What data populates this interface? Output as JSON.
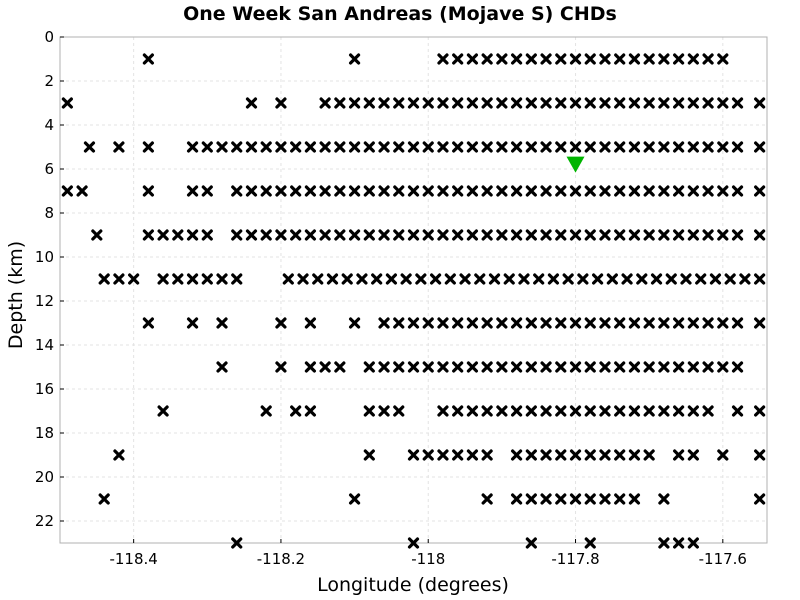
{
  "chart_data": {
    "type": "scatter",
    "title": "One Week San Andreas (Mojave S) CHDs",
    "xlabel": "Longitude (degrees)",
    "ylabel": "Depth (km)",
    "xlim": [
      -118.5,
      -117.54
    ],
    "ylim": [
      0,
      23
    ],
    "y_inverted": true,
    "grid": true,
    "xticks": [
      {
        "value": -118.4,
        "label": "-118.4"
      },
      {
        "value": -118.2,
        "label": "-118.2"
      },
      {
        "value": -118.0,
        "label": "-118"
      },
      {
        "value": -117.8,
        "label": "-117.8"
      },
      {
        "value": -117.6,
        "label": "-117.6"
      }
    ],
    "yticks": [
      {
        "value": 0,
        "label": "0"
      },
      {
        "value": 2,
        "label": "2"
      },
      {
        "value": 4,
        "label": "4"
      },
      {
        "value": 6,
        "label": "6"
      },
      {
        "value": 8,
        "label": "8"
      },
      {
        "value": 10,
        "label": "10"
      },
      {
        "value": 12,
        "label": "12"
      },
      {
        "value": 14,
        "label": "14"
      },
      {
        "value": 16,
        "label": "16"
      },
      {
        "value": 18,
        "label": "18"
      },
      {
        "value": 20,
        "label": "20"
      },
      {
        "value": 22,
        "label": "22"
      }
    ],
    "events": {
      "marker": "x",
      "color": "#000000",
      "rows": [
        {
          "depth": 1,
          "lon": [
            -118.38,
            -118.1,
            -117.98,
            -117.96,
            -117.94,
            -117.92,
            -117.9,
            -117.88,
            -117.86,
            -117.84,
            -117.82,
            -117.8,
            -117.78,
            -117.76,
            -117.74,
            -117.72,
            -117.7,
            -117.68,
            -117.66,
            -117.64,
            -117.62,
            -117.6
          ]
        },
        {
          "depth": 3,
          "lon": [
            -118.49,
            -118.24,
            -118.2,
            -118.14,
            -118.12,
            -118.1,
            -118.08,
            -118.06,
            -118.04,
            -118.02,
            -118.0,
            -117.98,
            -117.96,
            -117.94,
            -117.92,
            -117.9,
            -117.88,
            -117.86,
            -117.84,
            -117.82,
            -117.8,
            -117.78,
            -117.76,
            -117.74,
            -117.72,
            -117.7,
            -117.68,
            -117.66,
            -117.64,
            -117.62,
            -117.6,
            -117.58,
            -117.55
          ]
        },
        {
          "depth": 5,
          "lon": [
            -118.46,
            -118.42,
            -118.38,
            -118.32,
            -118.3,
            -118.28,
            -118.26,
            -118.24,
            -118.22,
            -118.2,
            -118.18,
            -118.16,
            -118.14,
            -118.12,
            -118.1,
            -118.08,
            -118.06,
            -118.04,
            -118.02,
            -118.0,
            -117.98,
            -117.96,
            -117.94,
            -117.92,
            -117.9,
            -117.88,
            -117.86,
            -117.84,
            -117.82,
            -117.8,
            -117.78,
            -117.76,
            -117.74,
            -117.72,
            -117.7,
            -117.68,
            -117.66,
            -117.64,
            -117.62,
            -117.6,
            -117.58,
            -117.55
          ]
        },
        {
          "depth": 7,
          "lon": [
            -118.49,
            -118.47,
            -118.38,
            -118.32,
            -118.3,
            -118.26,
            -118.24,
            -118.22,
            -118.2,
            -118.18,
            -118.16,
            -118.14,
            -118.12,
            -118.1,
            -118.08,
            -118.06,
            -118.04,
            -118.02,
            -118.0,
            -117.98,
            -117.96,
            -117.94,
            -117.92,
            -117.9,
            -117.88,
            -117.86,
            -117.84,
            -117.82,
            -117.8,
            -117.78,
            -117.76,
            -117.74,
            -117.72,
            -117.7,
            -117.68,
            -117.66,
            -117.64,
            -117.62,
            -117.6,
            -117.58,
            -117.55
          ]
        },
        {
          "depth": 9,
          "lon": [
            -118.45,
            -118.38,
            -118.36,
            -118.34,
            -118.32,
            -118.3,
            -118.26,
            -118.24,
            -118.22,
            -118.2,
            -118.18,
            -118.16,
            -118.14,
            -118.12,
            -118.1,
            -118.08,
            -118.06,
            -118.04,
            -118.02,
            -118.0,
            -117.98,
            -117.96,
            -117.94,
            -117.92,
            -117.9,
            -117.88,
            -117.86,
            -117.84,
            -117.82,
            -117.8,
            -117.78,
            -117.76,
            -117.74,
            -117.72,
            -117.7,
            -117.68,
            -117.66,
            -117.64,
            -117.62,
            -117.6,
            -117.58,
            -117.55
          ]
        },
        {
          "depth": 11,
          "lon": [
            -118.44,
            -118.42,
            -118.4,
            -118.36,
            -118.34,
            -118.32,
            -118.3,
            -118.28,
            -118.26,
            -118.19,
            -118.17,
            -118.15,
            -118.13,
            -118.11,
            -118.09,
            -118.07,
            -118.05,
            -118.03,
            -118.01,
            -117.99,
            -117.97,
            -117.95,
            -117.93,
            -117.91,
            -117.89,
            -117.87,
            -117.85,
            -117.83,
            -117.81,
            -117.79,
            -117.77,
            -117.75,
            -117.73,
            -117.71,
            -117.69,
            -117.67,
            -117.65,
            -117.63,
            -117.61,
            -117.59,
            -117.57,
            -117.55
          ]
        },
        {
          "depth": 13,
          "lon": [
            -118.38,
            -118.32,
            -118.28,
            -118.2,
            -118.16,
            -118.1,
            -118.06,
            -118.04,
            -118.02,
            -118.0,
            -117.98,
            -117.96,
            -117.94,
            -117.92,
            -117.9,
            -117.88,
            -117.86,
            -117.84,
            -117.82,
            -117.8,
            -117.78,
            -117.76,
            -117.74,
            -117.72,
            -117.7,
            -117.68,
            -117.66,
            -117.64,
            -117.62,
            -117.6,
            -117.58,
            -117.55
          ]
        },
        {
          "depth": 15,
          "lon": [
            -118.28,
            -118.2,
            -118.16,
            -118.14,
            -118.12,
            -118.08,
            -118.06,
            -118.04,
            -118.02,
            -118.0,
            -117.98,
            -117.96,
            -117.94,
            -117.92,
            -117.9,
            -117.88,
            -117.86,
            -117.84,
            -117.82,
            -117.8,
            -117.78,
            -117.76,
            -117.74,
            -117.72,
            -117.7,
            -117.68,
            -117.66,
            -117.64,
            -117.62,
            -117.6,
            -117.58
          ]
        },
        {
          "depth": 17,
          "lon": [
            -118.36,
            -118.22,
            -118.18,
            -118.16,
            -118.08,
            -118.06,
            -118.04,
            -117.98,
            -117.96,
            -117.94,
            -117.92,
            -117.9,
            -117.88,
            -117.86,
            -117.84,
            -117.82,
            -117.8,
            -117.78,
            -117.76,
            -117.74,
            -117.72,
            -117.7,
            -117.68,
            -117.66,
            -117.64,
            -117.62,
            -117.58,
            -117.55
          ]
        },
        {
          "depth": 19,
          "lon": [
            -118.42,
            -118.08,
            -118.02,
            -118.0,
            -117.98,
            -117.96,
            -117.94,
            -117.92,
            -117.88,
            -117.86,
            -117.84,
            -117.82,
            -117.8,
            -117.78,
            -117.76,
            -117.74,
            -117.72,
            -117.7,
            -117.66,
            -117.64,
            -117.6,
            -117.55
          ]
        },
        {
          "depth": 21,
          "lon": [
            -118.44,
            -118.1,
            -117.92,
            -117.88,
            -117.86,
            -117.84,
            -117.82,
            -117.8,
            -117.78,
            -117.76,
            -117.74,
            -117.72,
            -117.68,
            -117.55
          ]
        },
        {
          "depth": 23,
          "lon": [
            -118.26,
            -118.02,
            -117.86,
            -117.78,
            -117.68,
            -117.66,
            -117.64
          ]
        }
      ]
    },
    "mainshock": {
      "lon": -117.8,
      "depth": 5.8,
      "marker": "triangle-down",
      "color": "#00b400"
    }
  }
}
